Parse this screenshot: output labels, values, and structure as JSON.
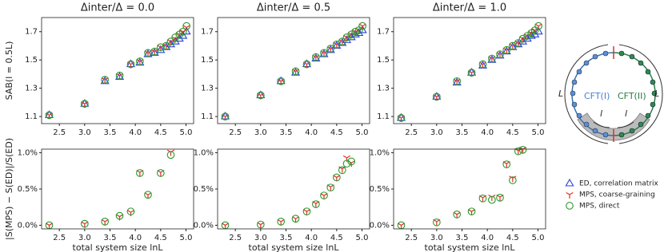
{
  "chart_data": [
    {
      "type": "scatter",
      "title": "Δinter/Δ = 0.0",
      "ylabel": "SAB(l = 0.5L)",
      "x": [
        2.3,
        3.0,
        3.4,
        3.69,
        3.91,
        4.09,
        4.25,
        4.38,
        4.5,
        4.61,
        4.7,
        4.79,
        4.87,
        4.94,
        5.01
      ],
      "xlim": [
        2.15,
        5.15
      ],
      "xticks": [
        2.5,
        {
          "value": 3,
          "label": "3.0"
        },
        3.5,
        {
          "value": 4,
          "label": "4.0"
        },
        4.5,
        {
          "value": 5,
          "label": "5.0"
        }
      ],
      "ylim": [
        1.05,
        1.8
      ],
      "yticks": [
        1.1,
        1.3,
        1.5,
        1.7
      ],
      "series": [
        {
          "name": "ED, correlation matrix",
          "color": "#2b3fd6",
          "marker": "triangle",
          "values": [
            1.11,
            1.19,
            1.35,
            1.38,
            1.47,
            1.48,
            1.54,
            1.55,
            1.57,
            1.59,
            1.61,
            1.63,
            1.65,
            1.67,
            1.7
          ]
        },
        {
          "name": "MPS, coarse-graining",
          "color": "#e0302a",
          "marker": "tri_down",
          "values": [
            1.11,
            1.19,
            1.36,
            1.39,
            1.47,
            1.49,
            1.55,
            1.56,
            1.59,
            1.6,
            1.63,
            1.65,
            1.68,
            1.7,
            1.73
          ]
        },
        {
          "name": "MPS, direct",
          "color": "#2a9a2a",
          "marker": "circle",
          "values": [
            1.11,
            1.19,
            1.36,
            1.39,
            1.47,
            1.49,
            1.55,
            1.56,
            1.59,
            1.6,
            1.63,
            1.66,
            1.68,
            1.7,
            1.74
          ]
        }
      ]
    },
    {
      "type": "scatter",
      "title": "Δinter/Δ = 0.5",
      "x": [
        2.3,
        3.0,
        3.4,
        3.69,
        3.91,
        4.09,
        4.25,
        4.38,
        4.5,
        4.61,
        4.7,
        4.79,
        4.87,
        4.94,
        5.01
      ],
      "xlim": [
        2.15,
        5.15
      ],
      "xticks": [
        2.5,
        {
          "value": 3,
          "label": "3.0"
        },
        3.5,
        {
          "value": 4,
          "label": "4.0"
        },
        4.5,
        {
          "value": 5,
          "label": "5.0"
        }
      ],
      "ylim": [
        1.05,
        1.8
      ],
      "yticks": [
        1.1,
        1.3,
        1.5,
        1.7
      ],
      "series": [
        {
          "name": "ED, correlation matrix",
          "color": "#2b3fd6",
          "marker": "triangle",
          "values": [
            1.1,
            1.25,
            1.35,
            1.41,
            1.47,
            1.51,
            1.54,
            1.57,
            1.6,
            1.62,
            1.64,
            1.66,
            1.68,
            1.69,
            1.71
          ]
        },
        {
          "name": "MPS, coarse-graining",
          "color": "#e0302a",
          "marker": "tri_down",
          "values": [
            1.1,
            1.25,
            1.35,
            1.42,
            1.47,
            1.52,
            1.55,
            1.58,
            1.61,
            1.63,
            1.66,
            1.68,
            1.7,
            1.71,
            1.74
          ]
        },
        {
          "name": "MPS, direct",
          "color": "#2a9a2a",
          "marker": "circle",
          "values": [
            1.1,
            1.25,
            1.35,
            1.42,
            1.47,
            1.52,
            1.55,
            1.58,
            1.61,
            1.63,
            1.66,
            1.68,
            1.7,
            1.71,
            1.74
          ]
        }
      ]
    },
    {
      "type": "scatter",
      "title": "Δinter/Δ = 1.0",
      "x": [
        2.3,
        3.0,
        3.4,
        3.69,
        3.91,
        4.09,
        4.25,
        4.38,
        4.5,
        4.61,
        4.7,
        4.79,
        4.87,
        4.94,
        5.01
      ],
      "xlim": [
        2.15,
        5.15
      ],
      "xticks": [
        2.5,
        {
          "value": 3,
          "label": "3.0"
        },
        3.5,
        {
          "value": 4,
          "label": "4.0"
        },
        4.5,
        {
          "value": 5,
          "label": "5.0"
        }
      ],
      "ylim": [
        1.05,
        1.8
      ],
      "yticks": [
        1.1,
        1.3,
        1.5,
        1.7
      ],
      "series": [
        {
          "name": "ED, correlation matrix",
          "color": "#2b3fd6",
          "marker": "triangle",
          "values": [
            1.09,
            1.24,
            1.34,
            1.41,
            1.46,
            1.5,
            1.53,
            1.56,
            1.59,
            1.61,
            1.63,
            1.65,
            1.67,
            1.68,
            1.7
          ]
        },
        {
          "name": "MPS, coarse-graining",
          "color": "#e0302a",
          "marker": "tri_down",
          "values": [
            1.09,
            1.24,
            1.35,
            1.41,
            1.47,
            1.51,
            1.54,
            1.57,
            1.6,
            1.62,
            1.65,
            1.67,
            1.69,
            1.71,
            1.74
          ]
        },
        {
          "name": "MPS, direct",
          "color": "#2a9a2a",
          "marker": "circle",
          "values": [
            1.09,
            1.24,
            1.35,
            1.41,
            1.47,
            1.51,
            1.54,
            1.57,
            1.6,
            1.62,
            1.65,
            1.67,
            1.69,
            1.71,
            1.74
          ]
        }
      ]
    },
    {
      "type": "scatter",
      "ylabel": "|S(MPS) − S(ED)|/S(ED)",
      "xlabel": "total system size lnL",
      "x": [
        2.3,
        3.0,
        3.4,
        3.69,
        3.91,
        4.09,
        4.25,
        4.5,
        4.7
      ],
      "xlim": [
        2.15,
        5.15
      ],
      "xticks": [
        2.5,
        {
          "value": 3,
          "label": "3.0"
        },
        3.5,
        {
          "value": 4,
          "label": "4.0"
        },
        4.5,
        {
          "value": 5,
          "label": "5.0"
        }
      ],
      "ylim": [
        -0.05,
        1.05
      ],
      "yticks": [
        {
          "value": 0,
          "label": "0.0%"
        },
        {
          "value": 0.5,
          "label": "0.5%"
        },
        {
          "value": 1,
          "label": "1.0%"
        }
      ],
      "series": [
        {
          "name": "MPS, coarse-graining",
          "color": "#e0302a",
          "marker": "tri_down",
          "values": [
            0.0,
            0.02,
            0.05,
            0.12,
            0.18,
            0.73,
            0.42,
            0.73,
            1.01
          ]
        },
        {
          "name": "MPS, direct",
          "color": "#2a9a2a",
          "marker": "circle",
          "values": [
            0.0,
            0.02,
            0.05,
            0.13,
            0.19,
            0.72,
            0.42,
            0.72,
            0.97
          ]
        }
      ]
    },
    {
      "type": "scatter",
      "xlabel": "total system size lnL",
      "x": [
        2.3,
        3.0,
        3.4,
        3.69,
        3.91,
        4.09,
        4.25,
        4.38,
        4.5,
        4.61,
        4.7,
        4.79
      ],
      "xlim": [
        2.15,
        5.15
      ],
      "xticks": [
        2.5,
        {
          "value": 3,
          "label": "3.0"
        },
        3.5,
        {
          "value": 4,
          "label": "4.0"
        },
        4.5,
        {
          "value": 5,
          "label": "5.0"
        }
      ],
      "ylim": [
        -0.05,
        1.05
      ],
      "yticks": [
        {
          "value": 0,
          "label": "0.0%"
        },
        {
          "value": 0.5,
          "label": "0.5%"
        },
        {
          "value": 1,
          "label": "1.0%"
        }
      ],
      "series": [
        {
          "name": "MPS, coarse-graining",
          "color": "#e0302a",
          "marker": "tri_down",
          "values": [
            0.0,
            0.01,
            0.05,
            0.09,
            0.19,
            0.3,
            0.41,
            0.53,
            0.66,
            0.78,
            0.93,
            0.86
          ]
        },
        {
          "name": "MPS, direct",
          "color": "#2a9a2a",
          "marker": "circle",
          "values": [
            0.0,
            0.01,
            0.05,
            0.09,
            0.19,
            0.29,
            0.41,
            0.52,
            0.66,
            0.76,
            0.85,
            0.88
          ]
        }
      ]
    },
    {
      "type": "scatter",
      "xlabel": "total system size lnL",
      "x": [
        2.3,
        3.0,
        3.4,
        3.69,
        3.91,
        4.09,
        4.25,
        4.38,
        4.5,
        4.61,
        4.7
      ],
      "xlim": [
        2.15,
        5.15
      ],
      "xticks": [
        2.5,
        {
          "value": 3,
          "label": "3.0"
        },
        3.5,
        {
          "value": 4,
          "label": "4.0"
        },
        4.5,
        {
          "value": 5,
          "label": "5.0"
        }
      ],
      "ylim": [
        -0.05,
        1.05
      ],
      "yticks": [
        {
          "value": 0,
          "label": "0.0%"
        },
        {
          "value": 0.5,
          "label": "0.5%"
        },
        {
          "value": 1,
          "label": "1.0%"
        }
      ],
      "series": [
        {
          "name": "MPS, coarse-graining",
          "color": "#e0302a",
          "marker": "tri_down",
          "values": [
            0.0,
            0.05,
            0.15,
            0.19,
            0.38,
            0.39,
            0.39,
            0.85,
            0.65,
            1.03,
            1.05
          ]
        },
        {
          "name": "MPS, direct",
          "color": "#2a9a2a",
          "marker": "circle",
          "values": [
            0.0,
            0.04,
            0.15,
            0.19,
            0.37,
            0.35,
            0.38,
            0.84,
            0.62,
            1.02,
            1.04
          ]
        }
      ]
    }
  ],
  "diagram": {
    "length_left": "L",
    "length_right": "L",
    "cft_left": "CFT(I)",
    "cft_right": "CFT(II)",
    "interval_left": "l",
    "interval_right": "l"
  }
}
